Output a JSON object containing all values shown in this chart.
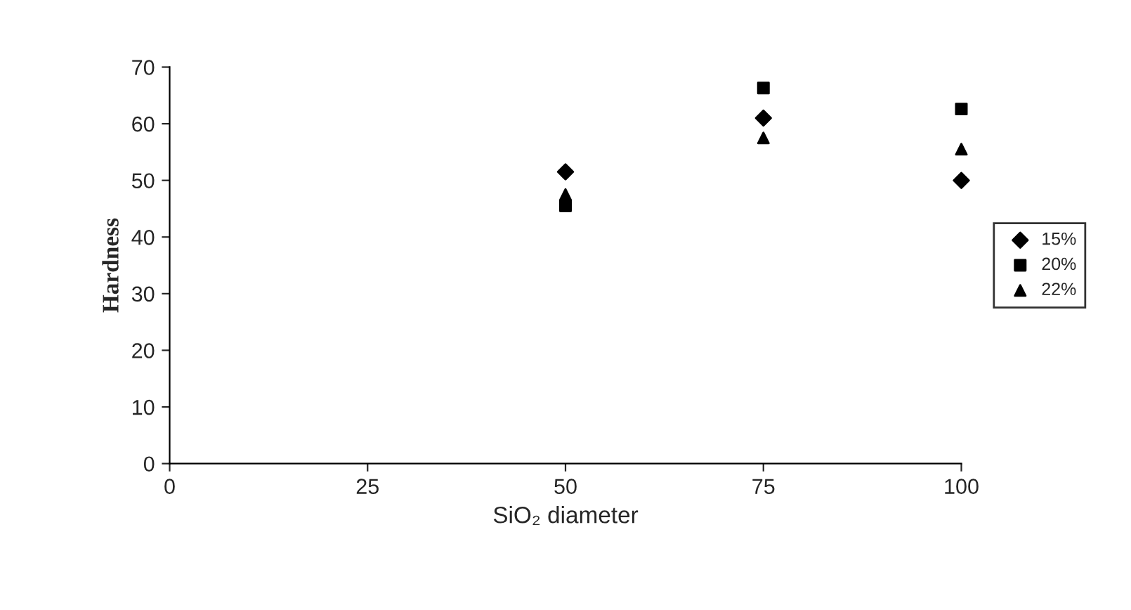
{
  "chart_data": {
    "type": "scatter",
    "xlabel": "SiO₂ diameter",
    "ylabel": "Hardness",
    "xlim": [
      0,
      100
    ],
    "xticks": [
      0,
      25,
      50,
      75,
      100
    ],
    "ylim": [
      0,
      70
    ],
    "yticks": [
      0,
      10,
      20,
      30,
      40,
      50,
      60,
      70
    ],
    "grid": false,
    "legend": "right",
    "x": [
      50,
      75,
      100
    ],
    "series": [
      {
        "name": "15%",
        "color": "#000000",
        "marker": "diamond",
        "values": [
          51.5,
          61,
          50
        ]
      },
      {
        "name": "20%",
        "color": "#000000",
        "marker": "square",
        "values": [
          45.5,
          66.3,
          62.6
        ]
      },
      {
        "name": "22%",
        "color": "#000000",
        "marker": "triangle",
        "values": [
          47.5,
          57.5,
          55.5
        ]
      }
    ]
  }
}
